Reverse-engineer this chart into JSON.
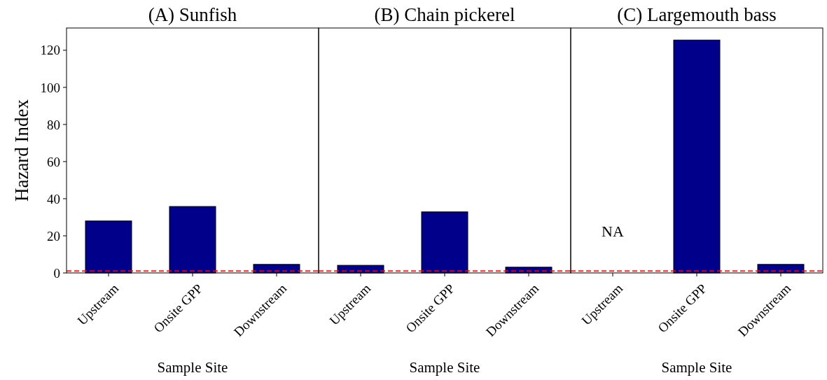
{
  "chart_data": [
    {
      "type": "bar",
      "title": "(A) Sunfish",
      "xlabel": "Sample Site",
      "ylabel": "Hazard Index",
      "categories": [
        "Upstream",
        "Onsite GPP",
        "Downstream"
      ],
      "values": [
        28.0,
        35.8,
        4.6
      ],
      "color": "#00008b",
      "ylim": [
        0,
        132
      ],
      "yticks": [
        0,
        20,
        40,
        60,
        80,
        100,
        120
      ],
      "ref_lines": [
        {
          "axis": "y",
          "value": 1,
          "color": "#ff0000",
          "line_style": "dashed"
        }
      ]
    },
    {
      "type": "bar",
      "title": "(B) Chain pickerel",
      "xlabel": "Sample Site",
      "categories": [
        "Upstream",
        "Onsite GPP",
        "Downstream"
      ],
      "values": [
        4.1,
        32.9,
        3.1
      ],
      "color": "#00008b",
      "ylim": [
        0,
        132
      ],
      "yticks": [
        0,
        20,
        40,
        60,
        80,
        100,
        120
      ],
      "tick_labels": "x",
      "ref_lines": [
        {
          "axis": "y",
          "value": 1,
          "color": "#ff0000",
          "line_style": "dashed"
        }
      ]
    },
    {
      "type": "bar",
      "title": "(C) Largemouth bass",
      "xlabel": "Sample Site",
      "categories": [
        "Upstream",
        "Onsite GPP",
        "Downstream"
      ],
      "values": [
        null,
        125.5,
        4.6
      ],
      "color": "#00008b",
      "ylim": [
        0,
        132
      ],
      "yticks": [
        0,
        20,
        40,
        60,
        80,
        100,
        120
      ],
      "tick_labels": "x",
      "ref_lines": [
        {
          "axis": "y",
          "value": 1,
          "color": "#ff0000",
          "line_style": "dashed"
        }
      ],
      "annotations": [
        "NA"
      ]
    }
  ]
}
